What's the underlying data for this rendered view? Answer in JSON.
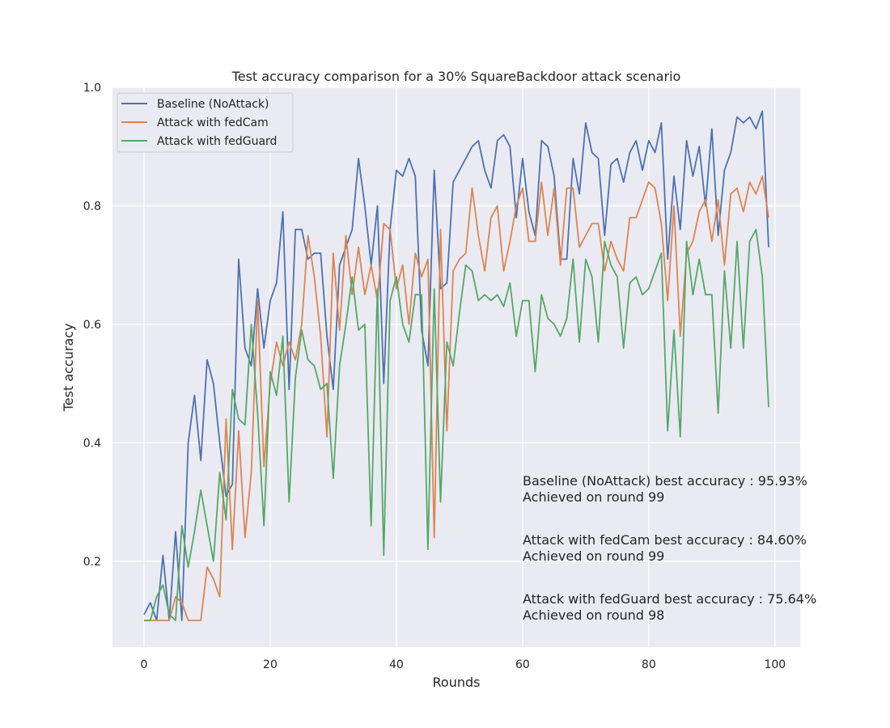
{
  "chart_data": {
    "type": "line",
    "title": "Test accuracy comparison for a 30% SquareBackdoor attack scenario",
    "xlabel": "Rounds",
    "ylabel": "Test accuracy",
    "xlim": [
      -5,
      104
    ],
    "ylim": [
      0.055,
      1.0
    ],
    "xticks": [
      0,
      20,
      40,
      60,
      80,
      100
    ],
    "yticks": [
      0.2,
      0.4,
      0.6,
      0.8,
      1.0
    ],
    "xtick_labels": [
      "0",
      "20",
      "40",
      "60",
      "80",
      "100"
    ],
    "ytick_labels": [
      "0.2",
      "0.4",
      "0.6",
      "0.8",
      "1.0"
    ],
    "grid": true,
    "legend_position": "top-left",
    "series": [
      {
        "name": "Baseline (NoAttack)",
        "color": "#4c72b0",
        "values": [
          0.11,
          0.13,
          0.1,
          0.21,
          0.1,
          0.25,
          0.1,
          0.4,
          0.48,
          0.37,
          0.54,
          0.5,
          0.4,
          0.31,
          0.33,
          0.71,
          0.56,
          0.53,
          0.66,
          0.56,
          0.64,
          0.67,
          0.79,
          0.49,
          0.76,
          0.76,
          0.71,
          0.72,
          0.72,
          0.58,
          0.49,
          0.7,
          0.73,
          0.76,
          0.88,
          0.8,
          0.7,
          0.8,
          0.5,
          0.76,
          0.86,
          0.85,
          0.88,
          0.85,
          0.59,
          0.53,
          0.86,
          0.66,
          0.67,
          0.84,
          0.86,
          0.88,
          0.9,
          0.91,
          0.86,
          0.83,
          0.91,
          0.92,
          0.9,
          0.78,
          0.88,
          0.79,
          0.75,
          0.91,
          0.9,
          0.85,
          0.71,
          0.71,
          0.88,
          0.82,
          0.94,
          0.89,
          0.88,
          0.75,
          0.87,
          0.88,
          0.84,
          0.89,
          0.91,
          0.86,
          0.91,
          0.89,
          0.94,
          0.71,
          0.85,
          0.76,
          0.91,
          0.85,
          0.9,
          0.8,
          0.93,
          0.75,
          0.86,
          0.89,
          0.95,
          0.94,
          0.95,
          0.93,
          0.96,
          0.73
        ]
      },
      {
        "name": "Attack with fedCam",
        "color": "#dd8452",
        "values": [
          0.1,
          0.1,
          0.1,
          0.1,
          0.1,
          0.14,
          0.13,
          0.1,
          0.1,
          0.1,
          0.19,
          0.17,
          0.14,
          0.44,
          0.22,
          0.42,
          0.24,
          0.35,
          0.64,
          0.36,
          0.5,
          0.57,
          0.53,
          0.57,
          0.54,
          0.6,
          0.75,
          0.68,
          0.58,
          0.41,
          0.72,
          0.59,
          0.75,
          0.65,
          0.73,
          0.65,
          0.7,
          0.64,
          0.77,
          0.76,
          0.66,
          0.7,
          0.6,
          0.72,
          0.68,
          0.71,
          0.24,
          0.76,
          0.42,
          0.69,
          0.71,
          0.72,
          0.83,
          0.75,
          0.69,
          0.78,
          0.8,
          0.69,
          0.74,
          0.8,
          0.83,
          0.74,
          0.74,
          0.84,
          0.75,
          0.83,
          0.7,
          0.83,
          0.83,
          0.73,
          0.75,
          0.77,
          0.77,
          0.69,
          0.74,
          0.71,
          0.69,
          0.78,
          0.78,
          0.81,
          0.84,
          0.83,
          0.77,
          0.64,
          0.8,
          0.58,
          0.72,
          0.74,
          0.79,
          0.81,
          0.74,
          0.81,
          0.7,
          0.82,
          0.83,
          0.79,
          0.84,
          0.82,
          0.85,
          0.78
        ]
      },
      {
        "name": "Attack with fedGuard",
        "color": "#55a868",
        "values": [
          0.1,
          0.1,
          0.14,
          0.16,
          0.11,
          0.1,
          0.26,
          0.19,
          0.25,
          0.32,
          0.26,
          0.2,
          0.35,
          0.27,
          0.49,
          0.44,
          0.43,
          0.6,
          0.45,
          0.26,
          0.52,
          0.48,
          0.58,
          0.3,
          0.51,
          0.59,
          0.54,
          0.53,
          0.49,
          0.5,
          0.34,
          0.53,
          0.6,
          0.68,
          0.59,
          0.6,
          0.26,
          0.66,
          0.21,
          0.64,
          0.68,
          0.6,
          0.57,
          0.65,
          0.65,
          0.22,
          0.66,
          0.3,
          0.57,
          0.53,
          0.62,
          0.7,
          0.69,
          0.64,
          0.65,
          0.64,
          0.65,
          0.63,
          0.67,
          0.58,
          0.64,
          0.64,
          0.52,
          0.65,
          0.61,
          0.6,
          0.58,
          0.61,
          0.71,
          0.57,
          0.71,
          0.68,
          0.57,
          0.74,
          0.7,
          0.68,
          0.56,
          0.67,
          0.68,
          0.65,
          0.66,
          0.69,
          0.72,
          0.42,
          0.59,
          0.41,
          0.74,
          0.65,
          0.71,
          0.65,
          0.65,
          0.45,
          0.69,
          0.56,
          0.74,
          0.56,
          0.74,
          0.76,
          0.68,
          0.46
        ]
      }
    ],
    "annotations": [
      {
        "line1": "Baseline (NoAttack) best accuracy : 95.93%",
        "line2": "Achieved on round 99"
      },
      {
        "line1": "Attack with fedCam best accuracy : 84.60%",
        "line2": "Achieved on round 99"
      },
      {
        "line1": "Attack with fedGuard best accuracy : 75.64%",
        "line2": "Achieved on round 98"
      }
    ]
  }
}
